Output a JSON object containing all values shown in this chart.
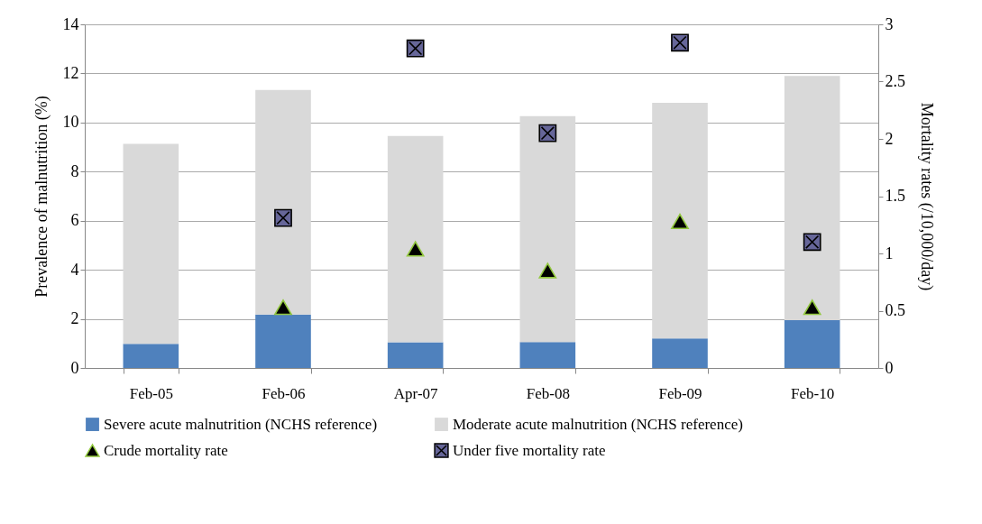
{
  "chart_data": {
    "type": "bar",
    "stacked": true,
    "categories": [
      "Feb-05",
      "Feb-06",
      "Apr-07",
      "Feb-08",
      "Feb-09",
      "Feb-10"
    ],
    "ylabel": "Prevalence of malnutrition (%)",
    "y2label": "Mortality rates (/10,000/day)",
    "ylim": [
      0,
      14
    ],
    "yticks": [
      0,
      2,
      4,
      6,
      8,
      10,
      12,
      14
    ],
    "y2lim": [
      0,
      3
    ],
    "y2ticks": [
      0,
      0.5,
      1,
      1.5,
      2,
      2.5,
      3
    ],
    "grid": "y",
    "legend": "bottom",
    "series": [
      {
        "name": "Severe acute malnutrition (NCHS reference)",
        "type": "bar",
        "color": "#4f81bd",
        "values": [
          0.98,
          2.18,
          1.05,
          1.06,
          1.2,
          1.95
        ]
      },
      {
        "name": "Moderate acute malnutrition (NCHS reference)",
        "type": "bar",
        "color": "#d9d9d9",
        "values": [
          8.15,
          9.15,
          8.4,
          9.2,
          9.6,
          9.95
        ]
      },
      {
        "name": "Crude mortality rate",
        "type": "scatter",
        "axis": "y2",
        "marker": "triangle",
        "color": "#000000",
        "values": [
          null,
          0.53,
          1.04,
          0.85,
          1.28,
          0.53
        ]
      },
      {
        "name": "Under five mortality rate",
        "type": "scatter",
        "axis": "y2",
        "marker": "cross",
        "color": "#666699",
        "values": [
          null,
          1.31,
          2.79,
          2.05,
          2.84,
          1.1
        ]
      }
    ]
  }
}
